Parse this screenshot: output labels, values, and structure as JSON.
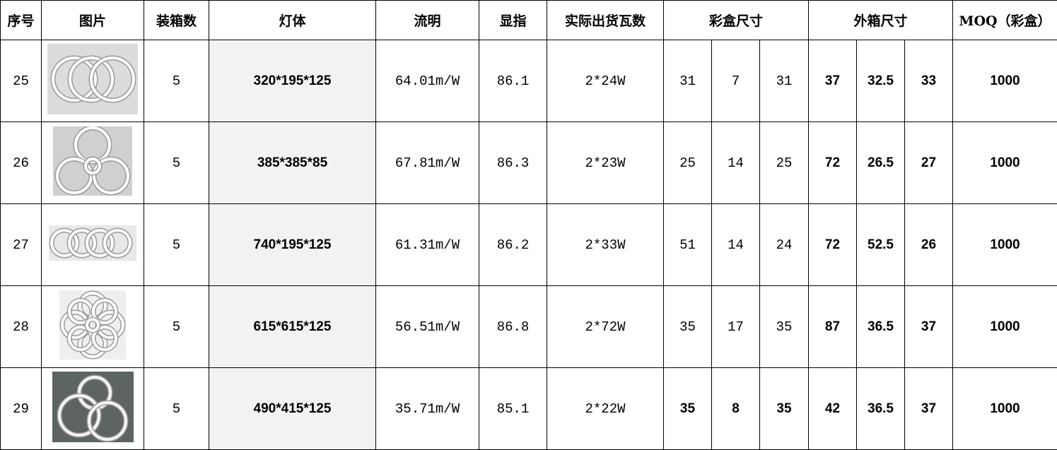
{
  "headers": {
    "index": "序号",
    "image": "图片",
    "pack_qty": "装箱数",
    "lamp_body": "灯体",
    "lumen": "流明",
    "cri": "显指",
    "watts": "实际出货瓦数",
    "color_box_size": "彩盒尺寸",
    "carton_size": "外箱尺寸",
    "moq": "MOQ（彩盒）"
  },
  "rows": [
    {
      "index": "25",
      "pack_qty": "5",
      "lamp_body": "320*195*125",
      "lumen": "64.01m/W",
      "cri": "86.1",
      "watts": "2*24W",
      "box": [
        "31",
        "7",
        "31"
      ],
      "carton": [
        "37",
        "32.5",
        "33"
      ],
      "moq": "1000"
    },
    {
      "index": "26",
      "pack_qty": "5",
      "lamp_body": "385*385*85",
      "lumen": "67.81m/W",
      "cri": "86.3",
      "watts": "2*23W",
      "box": [
        "25",
        "14",
        "25"
      ],
      "carton": [
        "72",
        "26.5",
        "27"
      ],
      "moq": "1000"
    },
    {
      "index": "27",
      "pack_qty": "5",
      "lamp_body": "740*195*125",
      "lumen": "61.31m/W",
      "cri": "86.2",
      "watts": "2*33W",
      "box": [
        "51",
        "14",
        "24"
      ],
      "carton": [
        "72",
        "52.5",
        "26"
      ],
      "moq": "1000"
    },
    {
      "index": "28",
      "pack_qty": "5",
      "lamp_body": "615*615*125",
      "lumen": "56.51m/W",
      "cri": "86.8",
      "watts": "2*72W",
      "box": [
        "35",
        "17",
        "35"
      ],
      "carton": [
        "87",
        "36.5",
        "37"
      ],
      "moq": "1000"
    },
    {
      "index": "29",
      "pack_qty": "5",
      "lamp_body": "490*415*125",
      "lumen": "35.71m/W",
      "cri": "85.1",
      "watts": "2*22W",
      "box": [
        "35",
        "8",
        "35"
      ],
      "carton": [
        "42",
        "36.5",
        "37"
      ],
      "moq": "1000"
    }
  ]
}
